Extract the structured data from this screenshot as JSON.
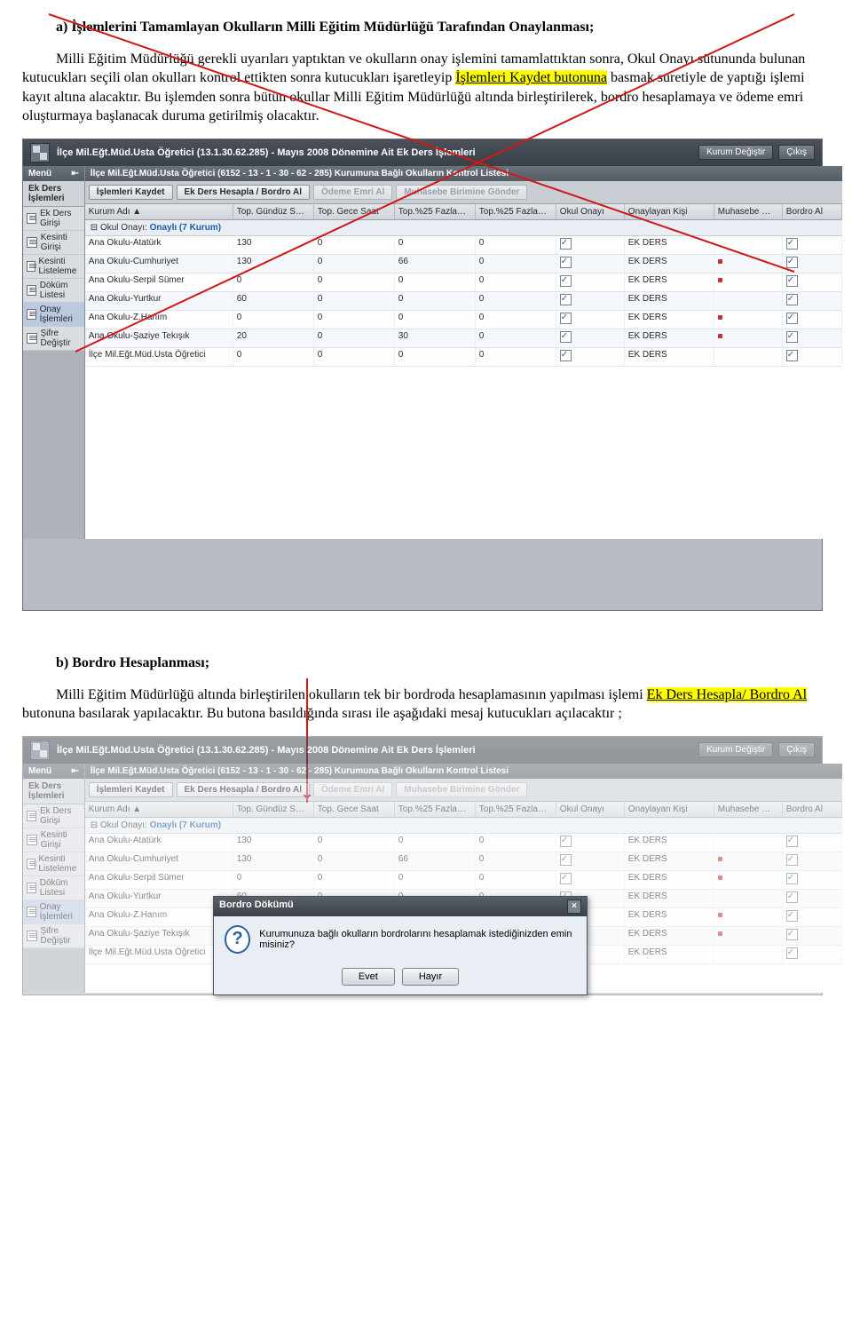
{
  "text": {
    "p1_lead": "a) İşlemlerini Tamamlayan Okulların Milli Eğitim Müdürlüğü Tarafından Onaylanması;",
    "p2_a": "Milli Eğitim Müdürlüğü gerekli uyarıları yaptıktan ve okulların onay işlemini tamamlattıktan sonra, Okul Onayı sütununda bulunan kutucukları seçili olan okulları kontrol ettikten sonra kutucukları işaretleyip ",
    "p2_hl": "İşlemleri Kaydet butonuna",
    "p2_b": " basmak suretiyle de yaptığı işlemi kayıt altına alacaktır. Bu işlemden sonra bütün okullar Milli Eğitim Müdürlüğü altında birleştirilerek, bordro hesaplamaya ve ödeme emri oluşturmaya başlanacak duruma getirilmiş olacaktır.",
    "p3_lead": "b) Bordro Hesaplanması;",
    "p4_a": "Milli Eğitim Müdürlüğü altında birleştirilen okulların tek bir bordroda hesaplamasının yapılması işlemi ",
    "p4_hl": "Ek Ders Hesapla/ Bordro Al",
    "p4_b": " butonuna basılarak yapılacaktır. Bu butona basıldığında sırası ile aşağıdaki mesaj kutucukları açılacaktır ;"
  },
  "app": {
    "title_prefix": "İlçe Mil.Eğt.Müd.Usta Öğretici (13.1.30.62.285) - Mayıs 2008 Dönemine Ait Ek Ders İşlemleri",
    "btn_switch": "Kurum Değiştir",
    "btn_exit": "Çıkış",
    "menu_label": "Menü",
    "menu_group": "Ek Ders İşlemleri",
    "menu_items": [
      "Ek Ders Girişi",
      "Kesinti Girişi",
      "Kesinti Listeleme",
      "Döküm Listesi",
      "Onay İşlemleri",
      "Şifre Değiştir"
    ],
    "menu_selected_index": 4,
    "panel_title": "İlçe Mil.Eğt.Müd.Usta Öğretici (6152 - 13 - 1 - 30 - 62 - 285) Kurumuna Bağlı Okulların Kontrol Listesi",
    "toolbar": [
      {
        "label": "İşlemleri Kaydet",
        "state": "on"
      },
      {
        "label": "Ek Ders Hesapla / Bordro Al",
        "state": "on"
      },
      {
        "label": "Ödeme Emri Al",
        "state": "dis"
      },
      {
        "label": "Muhasebe Birimine Gönder",
        "state": "dis"
      }
    ],
    "col_headers": [
      "Kurum Adı ▲",
      "Top. Gündüz S…",
      "Top. Gece Saat",
      "Top.%25 Fazla…",
      "Top.%25 Fazla…",
      "Okul Onayı",
      "Onaylayan Kişi",
      "Muhasebe …",
      "Bordro Al"
    ],
    "group_label": "Okul Onayı:",
    "group_value": "Onaylı (7 Kurum)",
    "rows": [
      {
        "name": "Ana Okulu-Atatürk",
        "g": "130",
        "ge": "0",
        "f1": "0",
        "f2": "0",
        "ok": true,
        "kisi": "EK DERS",
        "mu": "",
        "b": true
      },
      {
        "name": "Ana Okulu-Cumhuriyet",
        "g": "130",
        "ge": "0",
        "f1": "66",
        "f2": "0",
        "ok": true,
        "kisi": "EK DERS",
        "mu": "r",
        "b": true
      },
      {
        "name": "Ana Okulu-Serpil Sümer",
        "g": "0",
        "ge": "0",
        "f1": "0",
        "f2": "0",
        "ok": true,
        "kisi": "EK DERS",
        "mu": "r",
        "b": true
      },
      {
        "name": "Ana Okulu-Yurtkur",
        "g": "60",
        "ge": "0",
        "f1": "0",
        "f2": "0",
        "ok": true,
        "kisi": "EK DERS",
        "mu": "",
        "b": true
      },
      {
        "name": "Ana Okulu-Z.Hanım",
        "g": "0",
        "ge": "0",
        "f1": "0",
        "f2": "0",
        "ok": true,
        "kisi": "EK DERS",
        "mu": "r",
        "b": true
      },
      {
        "name": "Ana Okulu-Şaziye Tekışık",
        "g": "20",
        "ge": "0",
        "f1": "30",
        "f2": "0",
        "ok": true,
        "kisi": "EK DERS",
        "mu": "r",
        "b": true
      },
      {
        "name": "İlçe Mil.Eğt.Müd.Usta Öğretici",
        "g": "0",
        "ge": "0",
        "f1": "0",
        "f2": "0",
        "ok": true,
        "kisi": "EK DERS",
        "mu": "",
        "b": true
      }
    ]
  },
  "dialog": {
    "title": "Bordro Dökümü",
    "msg": "Kurumunuza bağlı okulların bordrolarını hesaplamak istediğinizden emin misiniz?",
    "yes": "Evet",
    "no": "Hayır"
  },
  "colors": {
    "highlight": "#ffff00",
    "red_line": "#d01818",
    "header_grad_top": "#4a5159",
    "link_blue": "#1a5da8"
  }
}
